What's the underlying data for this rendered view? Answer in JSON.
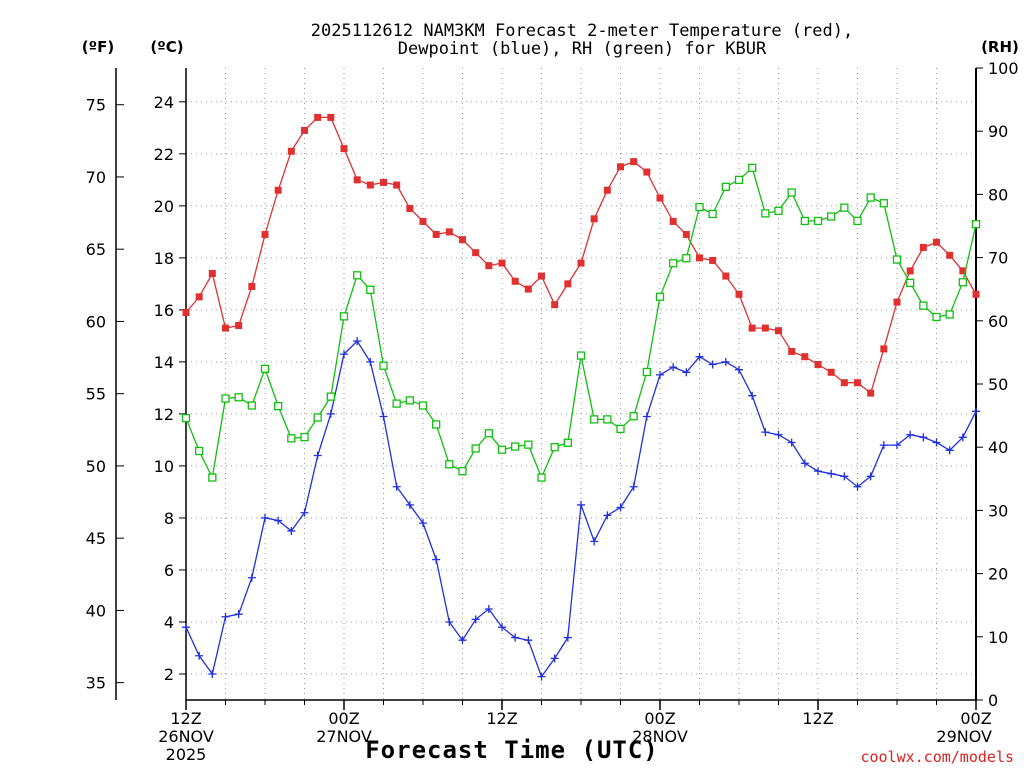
{
  "chart_data": {
    "type": "line",
    "title_line1": "2025112612 NAM3KM Forecast 2-meter Temperature (red),",
    "title_line2": "Dewpoint (blue), RH (green) for KBUR",
    "xlabel": "Forecast Time (UTC)",
    "credit": "coolwx.com/models",
    "unit_f": "(ºF)",
    "unit_c": "(ºC)",
    "unit_rh": "(RH)",
    "x_ticks": [
      {
        "hour": 0,
        "line1": "12Z",
        "line2": "26NOV",
        "line3": "2025"
      },
      {
        "hour": 12,
        "line1": "00Z",
        "line2": "27NOV",
        "line3": ""
      },
      {
        "hour": 24,
        "line1": "12Z",
        "line2": "",
        "line3": ""
      },
      {
        "hour": 36,
        "line1": "00Z",
        "line2": "28NOV",
        "line3": ""
      },
      {
        "hour": 48,
        "line1": "12Z",
        "line2": "",
        "line3": ""
      },
      {
        "hour": 60,
        "line1": "00Z",
        "line2": "29NOV",
        "line3": ""
      }
    ],
    "xlim": [
      0,
      60
    ],
    "ylim_c": [
      1,
      25.3
    ],
    "ylim_rh": [
      0,
      100
    ],
    "y_ticks_c": [
      "2",
      "4",
      "6",
      "8",
      "10",
      "12",
      "14",
      "16",
      "18",
      "20",
      "22",
      "24"
    ],
    "y_ticks_f": [
      "35",
      "40",
      "45",
      "50",
      "55",
      "60",
      "65",
      "70",
      "75"
    ],
    "y_ticks_rh": [
      "0",
      "10",
      "20",
      "30",
      "40",
      "50",
      "60",
      "70",
      "80",
      "90",
      "100"
    ],
    "grid": true,
    "colors": {
      "temperature": "#e03030",
      "dewpoint": "#2030e0",
      "rh": "#10c010"
    },
    "series": [
      {
        "key": "temperature",
        "axis": "c",
        "marker": "filled-square",
        "values": [
          15.9,
          16.5,
          17.4,
          15.3,
          15.4,
          16.9,
          18.9,
          20.6,
          22.1,
          22.9,
          23.4,
          23.4,
          22.2,
          21.0,
          20.8,
          20.9,
          20.8,
          19.9,
          19.4,
          18.9,
          19.0,
          18.7,
          18.2,
          17.7,
          17.8,
          17.1,
          16.8,
          17.3,
          16.2,
          17.0,
          17.8,
          19.5,
          20.6,
          21.5,
          21.7,
          21.3,
          20.3,
          19.4,
          18.9,
          18.0,
          17.9,
          17.3,
          16.6,
          15.3,
          15.3,
          15.2,
          14.4,
          14.2,
          13.9,
          13.6,
          13.2,
          13.2,
          12.8,
          14.5,
          16.3,
          17.5,
          18.4,
          18.6,
          18.1,
          17.5,
          16.6
        ]
      },
      {
        "key": "dewpoint",
        "axis": "c",
        "marker": "plus",
        "values": [
          3.8,
          2.7,
          2.0,
          4.2,
          4.3,
          5.7,
          8.0,
          7.9,
          7.5,
          8.2,
          10.4,
          12.0,
          14.3,
          14.8,
          14.0,
          11.9,
          9.2,
          8.5,
          7.8,
          6.4,
          4.0,
          3.3,
          4.1,
          4.5,
          3.8,
          3.4,
          3.3,
          1.9,
          2.6,
          3.4,
          8.5,
          7.1,
          8.1,
          8.4,
          9.2,
          11.9,
          13.5,
          13.8,
          13.6,
          14.2,
          13.9,
          14.0,
          13.7,
          12.7,
          11.3,
          11.2,
          10.9,
          10.1,
          9.8,
          9.7,
          9.6,
          9.2,
          9.6,
          10.8,
          10.8,
          11.2,
          11.1,
          10.9,
          10.6,
          11.1,
          12.1
        ]
      },
      {
        "key": "rh",
        "axis": "rh",
        "marker": "open-square",
        "values": [
          44.6,
          39.4,
          35.2,
          47.7,
          47.9,
          46.6,
          52.4,
          46.5,
          41.4,
          41.6,
          44.7,
          48.0,
          60.7,
          67.2,
          64.9,
          52.9,
          46.9,
          47.4,
          46.6,
          43.6,
          37.3,
          36.2,
          39.8,
          42.2,
          39.6,
          40.1,
          40.4,
          35.2,
          40.0,
          40.7,
          54.5,
          44.4,
          44.4,
          42.9,
          44.9,
          51.9,
          63.8,
          69.1,
          69.9,
          78.0,
          76.9,
          81.2,
          82.3,
          84.2,
          77.0,
          77.4,
          80.3,
          75.8,
          75.8,
          76.5,
          77.9,
          75.8,
          79.5,
          78.6,
          69.7,
          66.0,
          62.4,
          60.6,
          61.0,
          66.1,
          75.3
        ]
      }
    ]
  }
}
